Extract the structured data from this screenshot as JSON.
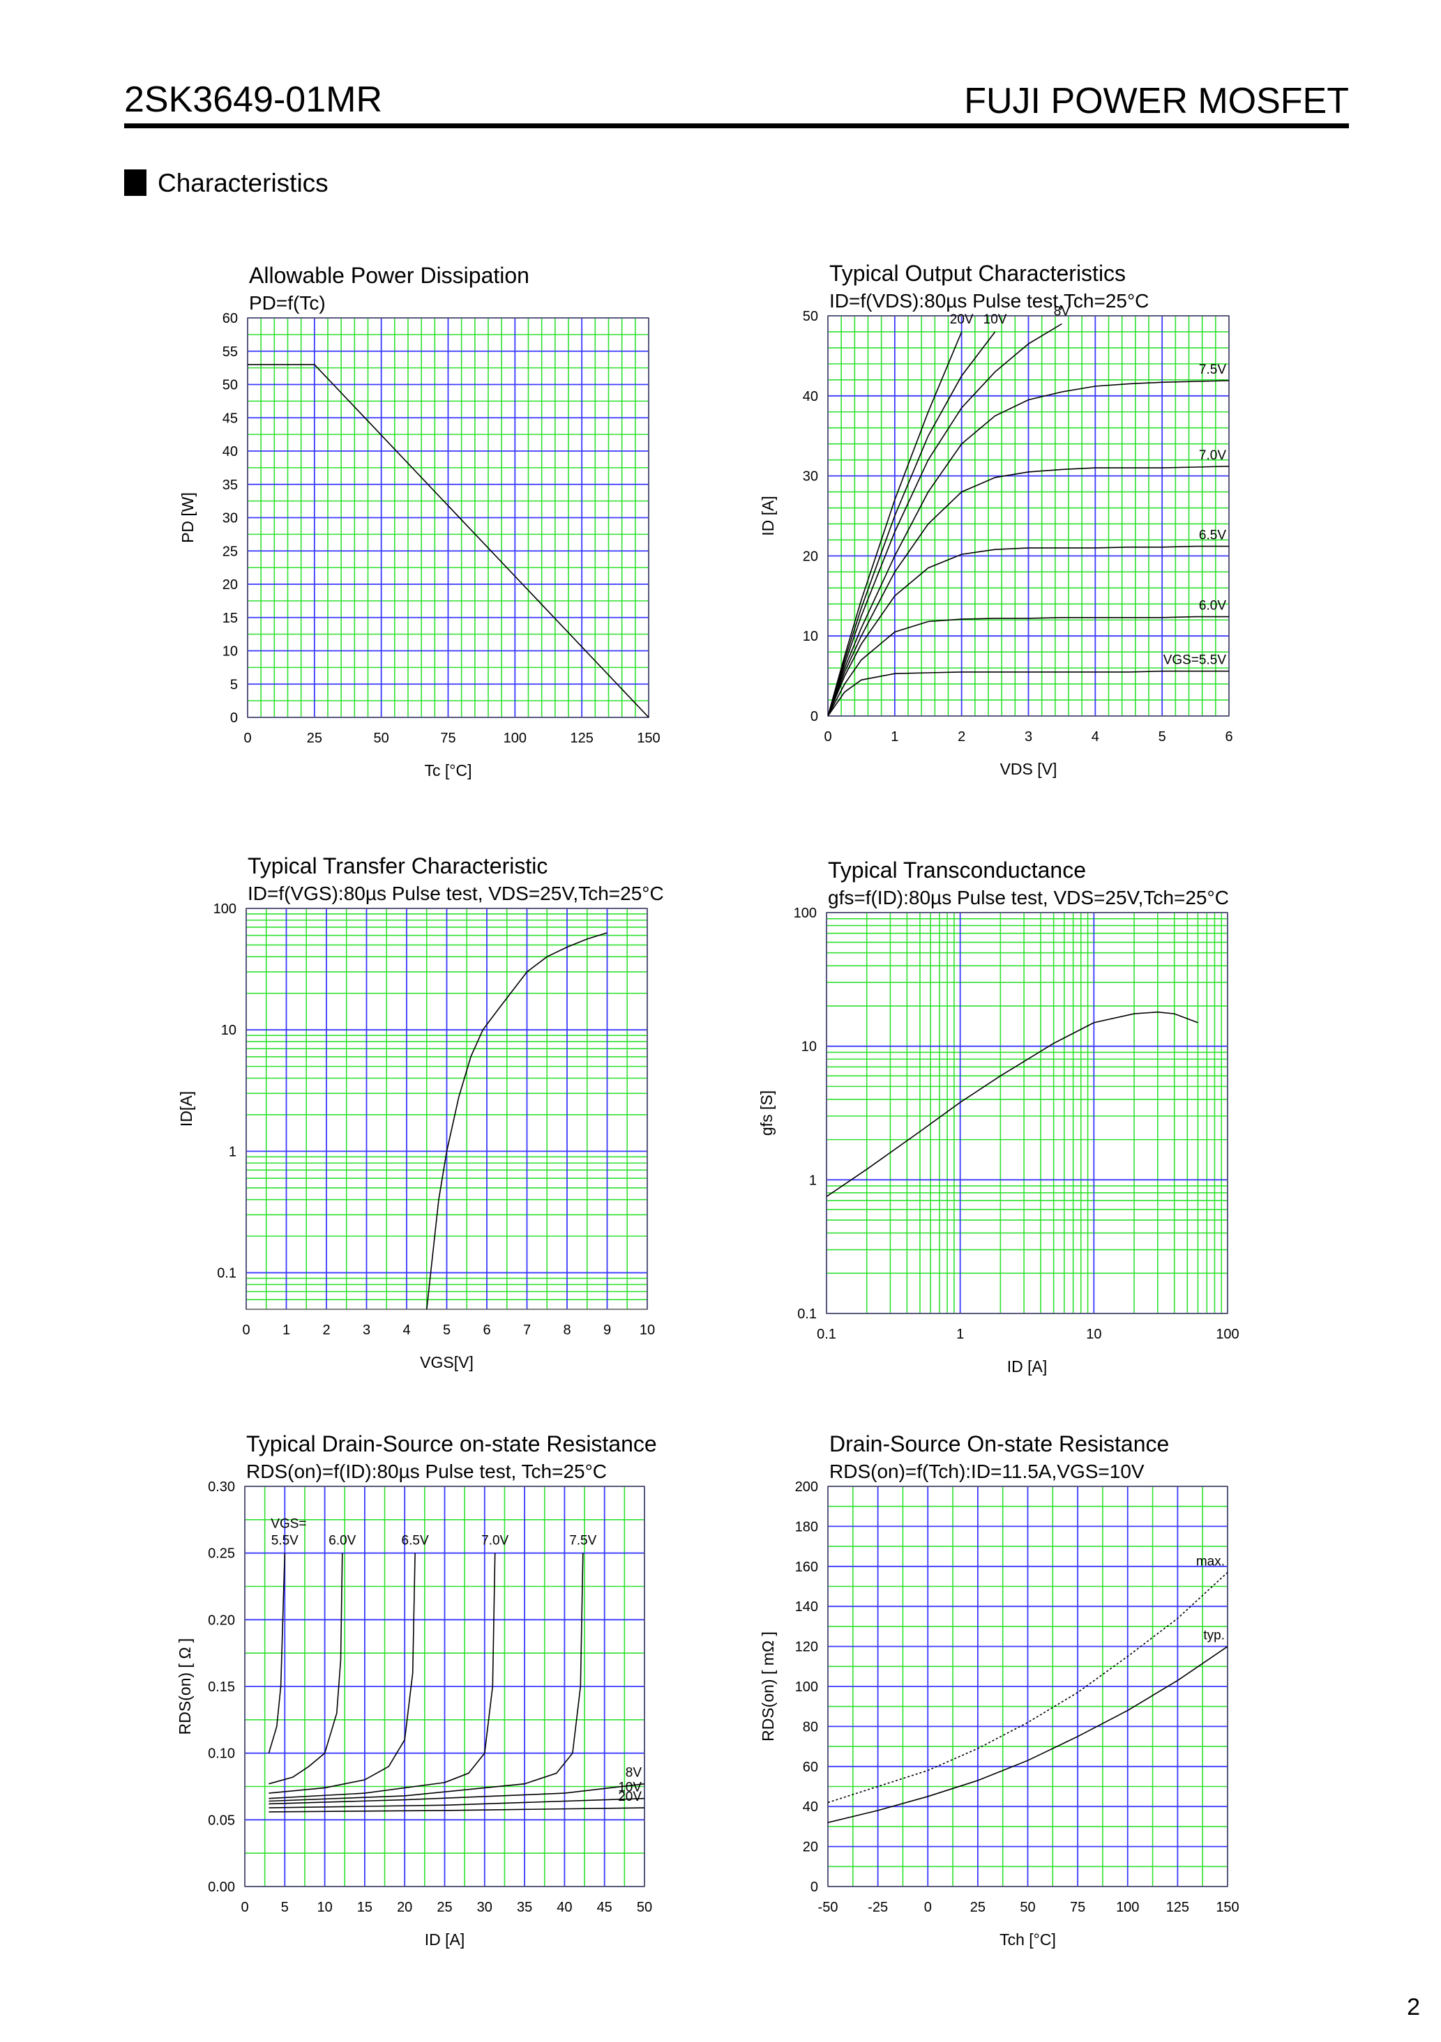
{
  "header": {
    "part_number": "2SK3649-01MR",
    "brand": "FUJI POWER MOSFET"
  },
  "section": "Characteristics",
  "page_number": "2",
  "chart_data": [
    {
      "type": "line",
      "title": "Allowable Power Dissipation",
      "subtitle": "PD=f(Tc)",
      "x_label": "Tc [°C]",
      "y_label": "PD [W]",
      "xlim": [
        0,
        150
      ],
      "ylim": [
        0,
        60
      ],
      "xticks": [
        0,
        25,
        50,
        75,
        100,
        125,
        150
      ],
      "yticks": [
        0,
        5,
        10,
        15,
        20,
        25,
        30,
        35,
        40,
        45,
        50,
        55,
        60
      ],
      "minor_xticks": [
        5,
        10,
        15,
        20,
        30,
        35,
        40,
        45,
        55,
        60,
        65,
        70,
        80,
        85,
        90,
        95,
        105,
        110,
        115,
        120,
        130,
        135,
        140,
        145
      ],
      "minor_yticks": [
        2.5,
        7.5,
        12.5,
        17.5,
        22.5,
        27.5,
        32.5,
        37.5,
        42.5,
        47.5,
        52.5,
        57.5
      ],
      "grid": true,
      "major_grid_color": "#3a3aff",
      "minor_grid_color": "#2fe02f",
      "x": [
        0,
        25,
        150
      ],
      "series": [
        {
          "color": "#000000",
          "values": [
            53,
            53,
            0
          ]
        }
      ]
    },
    {
      "type": "line",
      "title": "Typical Output Characteristics",
      "subtitle": "ID=f(VDS):80µs Pulse test,Tch=25°C",
      "x_label": "VDS [V]",
      "y_label": "ID [A]",
      "xlim": [
        0,
        6
      ],
      "ylim": [
        0,
        50
      ],
      "xticks": [
        0,
        1,
        2,
        3,
        4,
        5,
        6
      ],
      "yticks": [
        0,
        10,
        20,
        30,
        40,
        50
      ],
      "minor_xticks": [
        0.2,
        0.4,
        0.6,
        0.8,
        1.2,
        1.4,
        1.6,
        1.8,
        2.2,
        2.4,
        2.6,
        2.8,
        3.2,
        3.4,
        3.6,
        3.8,
        4.2,
        4.4,
        4.6,
        4.8,
        5.2,
        5.4,
        5.6,
        5.8
      ],
      "minor_yticks": [
        2,
        4,
        6,
        8,
        12,
        14,
        16,
        18,
        22,
        24,
        26,
        28,
        32,
        34,
        36,
        38,
        42,
        44,
        46,
        48
      ],
      "grid": true,
      "major_grid_color": "#3a3aff",
      "minor_grid_color": "#2fe02f",
      "x": [
        0,
        0.25,
        0.5,
        1,
        1.5,
        2,
        2.5,
        3,
        3.5,
        4,
        4.5,
        5,
        5.5,
        6
      ],
      "series": [
        {
          "name": "20V",
          "color": "#000000",
          "values": [
            0,
            7.5,
            14.5,
            27,
            38,
            48,
            null,
            null,
            null,
            null,
            null,
            null,
            null,
            null
          ]
        },
        {
          "name": "10V",
          "color": "#000000",
          "values": [
            0,
            7,
            13.5,
            25,
            35,
            42.5,
            48,
            null,
            null,
            null,
            null,
            null,
            null,
            null
          ]
        },
        {
          "name": "8V",
          "color": "#000000",
          "values": [
            0,
            6.5,
            12.5,
            23,
            32,
            38.5,
            43,
            46.5,
            49,
            null,
            null,
            null,
            null,
            null
          ]
        },
        {
          "name": "7.5V",
          "color": "#000000",
          "values": [
            0,
            6,
            11,
            20,
            28,
            34,
            37.5,
            39.5,
            40.5,
            41.2,
            41.5,
            41.7,
            41.8,
            41.9
          ]
        },
        {
          "name": "7.0V",
          "color": "#000000",
          "values": [
            0,
            5.5,
            10,
            18,
            24,
            28,
            29.8,
            30.5,
            30.8,
            31,
            31,
            31,
            31.1,
            31.2
          ]
        },
        {
          "name": "6.5V",
          "color": "#000000",
          "values": [
            0,
            5,
            9,
            15,
            18.5,
            20.2,
            20.8,
            21,
            21,
            21,
            21.1,
            21.1,
            21.2,
            21.2
          ]
        },
        {
          "name": "6.0V",
          "color": "#000000",
          "values": [
            0,
            4,
            7,
            10.5,
            11.8,
            12.1,
            12.2,
            12.2,
            12.3,
            12.3,
            12.3,
            12.3,
            12.4,
            12.4
          ]
        },
        {
          "name": "VGS=5.5V",
          "color": "#000000",
          "values": [
            0,
            3,
            4.5,
            5.3,
            5.4,
            5.5,
            5.5,
            5.5,
            5.5,
            5.5,
            5.5,
            5.6,
            5.6,
            5.6
          ]
        }
      ]
    },
    {
      "type": "line",
      "title": "Typical Transfer Characteristic",
      "subtitle": "ID=f(VGS):80µs Pulse test, VDS=25V,Tch=25°C",
      "x_label": "VGS[V]",
      "y_label": "ID[A]",
      "xlim": [
        0,
        10
      ],
      "ylim": [
        0.05,
        100
      ],
      "ylog": true,
      "xticks": [
        0,
        1,
        2,
        3,
        4,
        5,
        6,
        7,
        8,
        9,
        10
      ],
      "yticks": [
        0.1,
        1,
        10,
        100
      ],
      "minor_xticks": [
        0.5,
        1.5,
        2.5,
        3.5,
        4.5,
        5.5,
        6.5,
        7.5,
        8.5,
        9.5
      ],
      "minor_yticks": [
        0.06,
        0.07,
        0.08,
        0.09,
        0.2,
        0.3,
        0.4,
        0.5,
        0.6,
        0.7,
        0.8,
        0.9,
        2,
        3,
        4,
        5,
        6,
        7,
        8,
        9,
        20,
        30,
        40,
        50,
        60,
        70,
        80,
        90
      ],
      "grid": true,
      "major_grid_color": "#3a3aff",
      "minor_grid_color": "#2fe02f",
      "x": [
        4.5,
        4.6,
        4.8,
        5,
        5.3,
        5.6,
        5.9,
        6.3,
        7,
        7.5,
        8,
        8.5,
        9
      ],
      "series": [
        {
          "color": "#000000",
          "values": [
            0.05,
            0.1,
            0.4,
            1,
            2.8,
            6,
            10,
            15,
            30,
            40,
            48,
            56,
            63
          ]
        }
      ]
    },
    {
      "type": "line",
      "title": "Typical Transconductance",
      "subtitle": "gfs=f(ID):80µs Pulse test, VDS=25V,Tch=25°C",
      "x_label": "ID [A]",
      "y_label": "gfs [S]",
      "xlim": [
        0.1,
        100
      ],
      "ylim": [
        0.1,
        100
      ],
      "xlog": true,
      "ylog": true,
      "xticks": [
        0.1,
        1,
        10,
        100
      ],
      "yticks": [
        0.1,
        1,
        10,
        100
      ],
      "minor_xticks": [
        0.2,
        0.3,
        0.4,
        0.5,
        0.6,
        0.7,
        0.8,
        0.9,
        2,
        3,
        4,
        5,
        6,
        7,
        8,
        9,
        20,
        30,
        40,
        50,
        60,
        70,
        80,
        90
      ],
      "minor_yticks": [
        0.2,
        0.3,
        0.4,
        0.5,
        0.6,
        0.7,
        0.8,
        0.9,
        2,
        3,
        4,
        5,
        6,
        7,
        8,
        9,
        20,
        30,
        40,
        50,
        60,
        70,
        80,
        90
      ],
      "grid": true,
      "major_grid_color": "#3a3aff",
      "minor_grid_color": "#2fe02f",
      "x": [
        0.1,
        0.2,
        0.5,
        1,
        2,
        5,
        10,
        20,
        30,
        40,
        60
      ],
      "series": [
        {
          "color": "#000000",
          "values": [
            0.75,
            1.2,
            2.3,
            3.8,
            6,
            10.5,
            15,
            17.5,
            18,
            17.5,
            15
          ]
        }
      ]
    },
    {
      "type": "line",
      "title": "Typical Drain-Source on-state Resistance",
      "subtitle": "RDS(on)=f(ID):80µs Pulse test, Tch=25°C",
      "x_label": "ID [A]",
      "y_label": "RDS(on) [ Ω ]",
      "xlim": [
        0,
        50
      ],
      "ylim": [
        0,
        0.3
      ],
      "xticks": [
        0,
        5,
        10,
        15,
        20,
        25,
        30,
        35,
        40,
        45,
        50
      ],
      "yticks": [
        {
          "value": 0,
          "label": "0.00"
        },
        {
          "value": 0.05,
          "label": "0.05"
        },
        {
          "value": 0.1,
          "label": "0.10"
        },
        {
          "value": 0.15,
          "label": "0.15"
        },
        {
          "value": 0.2,
          "label": "0.20"
        },
        {
          "value": 0.25,
          "label": "0.25"
        },
        {
          "value": 0.3,
          "label": "0.30"
        }
      ],
      "minor_xticks": [
        2.5,
        7.5,
        12.5,
        17.5,
        22.5,
        27.5,
        32.5,
        37.5,
        42.5,
        47.5
      ],
      "minor_yticks": [
        0.025,
        0.075,
        0.125,
        0.175,
        0.225,
        0.275
      ],
      "grid": true,
      "major_grid_color": "#3a3aff",
      "minor_grid_color": "#2fe02f",
      "annotation": "VGS=",
      "series": [
        {
          "name": "5.5V",
          "color": "#000000",
          "x": [
            3,
            4,
            4.5,
            5
          ],
          "values": [
            0.1,
            0.12,
            0.15,
            0.25
          ]
        },
        {
          "name": "6.0V",
          "color": "#000000",
          "x": [
            3,
            6,
            8,
            10,
            11.5,
            12,
            12.2
          ],
          "values": [
            0.077,
            0.082,
            0.09,
            0.1,
            0.13,
            0.17,
            0.25
          ]
        },
        {
          "name": "6.5V",
          "color": "#000000",
          "x": [
            3,
            10,
            15,
            18,
            20,
            21,
            21.3
          ],
          "values": [
            0.07,
            0.074,
            0.08,
            0.09,
            0.11,
            0.16,
            0.25
          ]
        },
        {
          "name": "7.0V",
          "color": "#000000",
          "x": [
            3,
            15,
            25,
            28,
            30,
            31,
            31.3
          ],
          "values": [
            0.066,
            0.07,
            0.078,
            0.085,
            0.1,
            0.15,
            0.25
          ]
        },
        {
          "name": "7.5V",
          "color": "#000000",
          "x": [
            3,
            20,
            35,
            39,
            41,
            42,
            42.3
          ],
          "values": [
            0.064,
            0.068,
            0.077,
            0.085,
            0.1,
            0.15,
            0.25
          ]
        },
        {
          "name": "8V",
          "color": "#000000",
          "x": [
            3,
            20,
            40,
            50
          ],
          "values": [
            0.062,
            0.065,
            0.07,
            0.077
          ]
        },
        {
          "name": "10V",
          "color": "#000000",
          "x": [
            3,
            25,
            50
          ],
          "values": [
            0.059,
            0.061,
            0.066
          ]
        },
        {
          "name": "20V",
          "color": "#000000",
          "x": [
            3,
            25,
            50
          ],
          "values": [
            0.056,
            0.057,
            0.059
          ]
        }
      ]
    },
    {
      "type": "line",
      "title": "Drain-Source On-state Resistance",
      "subtitle": "RDS(on)=f(Tch):ID=11.5A,VGS=10V",
      "x_label": "Tch [°C]",
      "y_label": "RDS(on) [ mΩ ]",
      "xlim": [
        -50,
        150
      ],
      "ylim": [
        0,
        200
      ],
      "xticks": [
        -50,
        -25,
        0,
        25,
        50,
        75,
        100,
        125,
        150
      ],
      "yticks": [
        0,
        20,
        40,
        60,
        80,
        100,
        120,
        140,
        160,
        180,
        200
      ],
      "minor_xticks": [
        -37.5,
        -12.5,
        12.5,
        37.5,
        62.5,
        87.5,
        112.5,
        137.5
      ],
      "minor_yticks": [
        10,
        30,
        50,
        70,
        90,
        110,
        130,
        150,
        170,
        190
      ],
      "grid": true,
      "major_grid_color": "#3a3aff",
      "minor_grid_color": "#2fe02f",
      "x": [
        -50,
        -25,
        0,
        25,
        50,
        75,
        100,
        125,
        150
      ],
      "series": [
        {
          "name": "max.",
          "color": "#000000",
          "dashed": true,
          "values": [
            42,
            50,
            58,
            69,
            82,
            97,
            115,
            134,
            157
          ]
        },
        {
          "name": "typ.",
          "color": "#000000",
          "values": [
            32,
            38,
            45,
            53,
            63,
            75,
            88,
            103,
            120
          ]
        }
      ]
    }
  ]
}
